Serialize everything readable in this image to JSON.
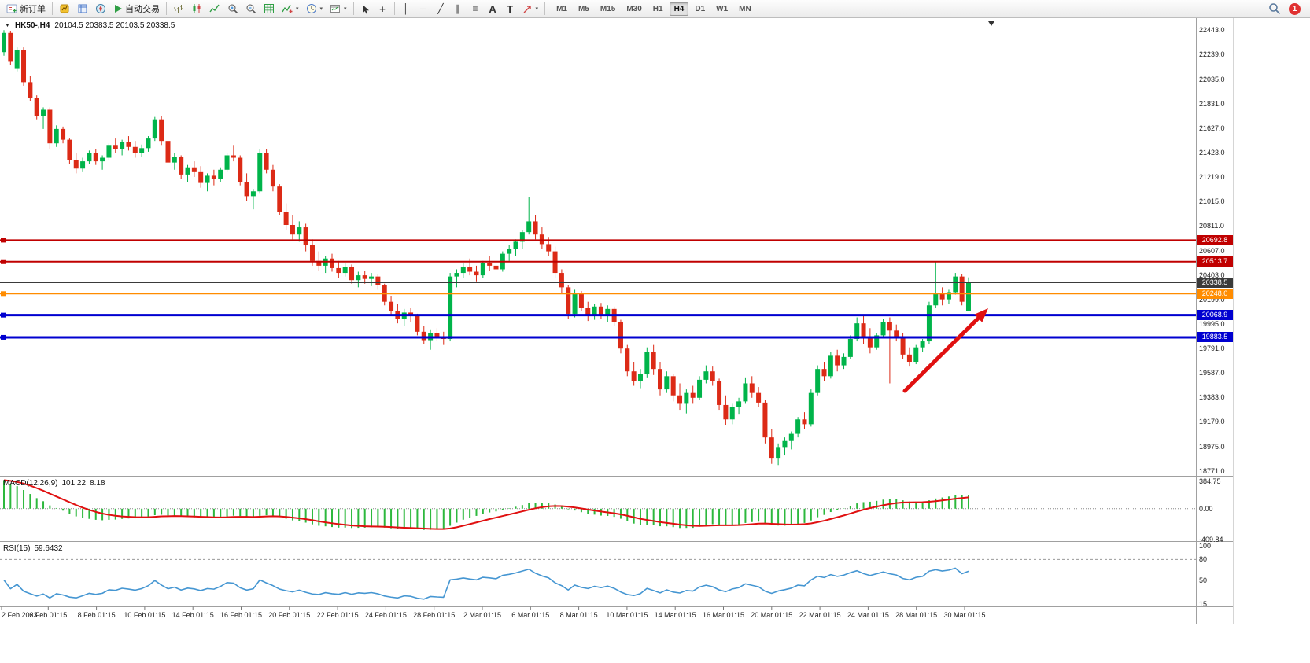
{
  "toolbar": {
    "new_order_label": "新订单",
    "autotrading_label": "自动交易",
    "timeframes": [
      "M1",
      "M5",
      "M15",
      "M30",
      "H1",
      "H4",
      "D1",
      "W1",
      "MN"
    ],
    "active_timeframe": "H4",
    "notification_count": "1"
  },
  "icons": {
    "symbol_dropdown": "▼",
    "scroll_marker": "▼",
    "caret": "▾",
    "crosshair": "+",
    "vertical_line": "│",
    "horizontal_line": "─",
    "trendline": "╱",
    "channel": "∥",
    "fibonacci": "≡",
    "text_tool": "A",
    "label_tool": "T"
  },
  "chart": {
    "title": "HK50-,H4",
    "ohlc": "20104.5 20383.5 20103.5 20338.5",
    "price_axis": [
      "22443.0",
      "22239.0",
      "22035.0",
      "21831.0",
      "21627.0",
      "21423.0",
      "21219.0",
      "21015.0",
      "20811.0",
      "20607.0",
      "20403.0",
      "20199.0",
      "19995.0",
      "19791.0",
      "19587.0",
      "19383.0",
      "19179.0",
      "18975.0",
      "18771.0"
    ],
    "time_axis": [
      "2 Feb 2023",
      "6 Feb 01:15",
      "8 Feb 01:15",
      "10 Feb 01:15",
      "14 Feb 01:15",
      "16 Feb 01:15",
      "20 Feb 01:15",
      "22 Feb 01:15",
      "24 Feb 01:15",
      "28 Feb 01:15",
      "2 Mar 01:15",
      "6 Mar 01:15",
      "8 Mar 01:15",
      "10 Mar 01:15",
      "14 Mar 01:15",
      "16 Mar 01:15",
      "20 Mar 01:15",
      "22 Mar 01:15",
      "24 Mar 01:15",
      "28 Mar 01:15",
      "30 Mar 01:15"
    ],
    "hlines": [
      {
        "price": 20692.8,
        "label": "20692.8",
        "color": "#c00000",
        "type": "resistance"
      },
      {
        "price": 20513.7,
        "label": "20513.7",
        "color": "#c00000",
        "type": "resistance"
      },
      {
        "price": 20338.5,
        "label": "20338.5",
        "color": "#3a3a3a",
        "type": "current-price"
      },
      {
        "price": 20248.0,
        "label": "20248.0",
        "color": "#ff8c00",
        "type": "level"
      },
      {
        "price": 20068.9,
        "label": "20068.9",
        "color": "#0000d0",
        "type": "support"
      },
      {
        "price": 19883.5,
        "label": "19883.5",
        "color": "#0000d0",
        "type": "support"
      }
    ],
    "colors": {
      "up": "#00b44a",
      "down": "#dc2a16",
      "arrow": "#e01010"
    }
  },
  "chart_data": {
    "type": "candlestick",
    "symbol": "HK50-",
    "timeframe": "H4",
    "ohlc_current": {
      "open": 20104.5,
      "high": 20383.5,
      "low": 20103.5,
      "close": 20338.5
    },
    "ylim": [
      18730,
      22530
    ],
    "bars": 148,
    "candles": [
      [
        22260,
        22443,
        22230,
        22420
      ],
      [
        22420,
        22435,
        22150,
        22180
      ],
      [
        22120,
        22300,
        22100,
        22280
      ],
      [
        22280,
        22300,
        21980,
        22010
      ],
      [
        22010,
        22060,
        21850,
        21880
      ],
      [
        21880,
        21900,
        21700,
        21730
      ],
      [
        21730,
        21800,
        21620,
        21780
      ],
      [
        21780,
        21800,
        21450,
        21500
      ],
      [
        21500,
        21650,
        21470,
        21620
      ],
      [
        21620,
        21640,
        21500,
        21530
      ],
      [
        21530,
        21540,
        21330,
        21360
      ],
      [
        21360,
        21420,
        21250,
        21290
      ],
      [
        21290,
        21380,
        21260,
        21350
      ],
      [
        21350,
        21440,
        21330,
        21420
      ],
      [
        21420,
        21450,
        21320,
        21350
      ],
      [
        21350,
        21400,
        21280,
        21380
      ],
      [
        21380,
        21500,
        21360,
        21480
      ],
      [
        21480,
        21540,
        21420,
        21450
      ],
      [
        21450,
        21530,
        21400,
        21510
      ],
      [
        21510,
        21560,
        21440,
        21470
      ],
      [
        21470,
        21520,
        21380,
        21420
      ],
      [
        21420,
        21490,
        21390,
        21460
      ],
      [
        21460,
        21560,
        21430,
        21540
      ],
      [
        21540,
        21720,
        21520,
        21700
      ],
      [
        21700,
        21730,
        21480,
        21520
      ],
      [
        21520,
        21560,
        21300,
        21340
      ],
      [
        21340,
        21420,
        21280,
        21390
      ],
      [
        21390,
        21400,
        21200,
        21240
      ],
      [
        21240,
        21320,
        21180,
        21300
      ],
      [
        21300,
        21350,
        21220,
        21260
      ],
      [
        21260,
        21310,
        21130,
        21170
      ],
      [
        21170,
        21250,
        21100,
        21230
      ],
      [
        21230,
        21280,
        21150,
        21200
      ],
      [
        21200,
        21300,
        21180,
        21280
      ],
      [
        21280,
        21420,
        21260,
        21400
      ],
      [
        21400,
        21480,
        21350,
        21380
      ],
      [
        21380,
        21400,
        21150,
        21180
      ],
      [
        21180,
        21250,
        21020,
        21060
      ],
      [
        21060,
        21120,
        20950,
        21100
      ],
      [
        21100,
        21450,
        21080,
        21420
      ],
      [
        21420,
        21450,
        21250,
        21280
      ],
      [
        21280,
        21320,
        21100,
        21140
      ],
      [
        21140,
        21160,
        20900,
        20930
      ],
      [
        20930,
        21000,
        20780,
        20820
      ],
      [
        20820,
        20900,
        20700,
        20740
      ],
      [
        20740,
        20850,
        20680,
        20800
      ],
      [
        20800,
        20830,
        20600,
        20650
      ],
      [
        20650,
        20700,
        20480,
        20520
      ],
      [
        20520,
        20600,
        20440,
        20480
      ],
      [
        20480,
        20560,
        20420,
        20540
      ],
      [
        20540,
        20580,
        20430,
        20460
      ],
      [
        20460,
        20520,
        20380,
        20420
      ],
      [
        20420,
        20500,
        20390,
        20470
      ],
      [
        20470,
        20490,
        20330,
        20360
      ],
      [
        20360,
        20430,
        20300,
        20400
      ],
      [
        20400,
        20440,
        20330,
        20370
      ],
      [
        20370,
        20420,
        20310,
        20390
      ],
      [
        20390,
        20410,
        20280,
        20320
      ],
      [
        20320,
        20330,
        20150,
        20180
      ],
      [
        20180,
        20230,
        20060,
        20100
      ],
      [
        20100,
        20160,
        20000,
        20040
      ],
      [
        20040,
        20120,
        19980,
        20090
      ],
      [
        20090,
        20130,
        20010,
        20060
      ],
      [
        20060,
        20080,
        19900,
        19930
      ],
      [
        19930,
        19980,
        19830,
        19860
      ],
      [
        19860,
        19950,
        19780,
        19920
      ],
      [
        19920,
        19960,
        19850,
        19890
      ],
      [
        19890,
        19930,
        19820,
        19870
      ],
      [
        19870,
        20420,
        19850,
        20390
      ],
      [
        20390,
        20450,
        20300,
        20420
      ],
      [
        20420,
        20500,
        20380,
        20470
      ],
      [
        20470,
        20540,
        20400,
        20430
      ],
      [
        20430,
        20480,
        20350,
        20400
      ],
      [
        20400,
        20520,
        20380,
        20500
      ],
      [
        20500,
        20560,
        20440,
        20480
      ],
      [
        20480,
        20530,
        20400,
        20450
      ],
      [
        20450,
        20600,
        20430,
        20580
      ],
      [
        20580,
        20650,
        20520,
        20620
      ],
      [
        20620,
        20700,
        20560,
        20680
      ],
      [
        20680,
        20780,
        20620,
        20760
      ],
      [
        20760,
        21050,
        20740,
        20850
      ],
      [
        20850,
        20900,
        20700,
        20740
      ],
      [
        20740,
        20800,
        20620,
        20660
      ],
      [
        20660,
        20720,
        20560,
        20600
      ],
      [
        20600,
        20640,
        20380,
        20420
      ],
      [
        20420,
        20450,
        20250,
        20300
      ],
      [
        20300,
        20320,
        20040,
        20080
      ],
      [
        20080,
        20280,
        20050,
        20250
      ],
      [
        20250,
        20270,
        20100,
        20130
      ],
      [
        20130,
        20180,
        20020,
        20060
      ],
      [
        20060,
        20160,
        20030,
        20140
      ],
      [
        20140,
        20170,
        20040,
        20070
      ],
      [
        20070,
        20150,
        20010,
        20120
      ],
      [
        20120,
        20140,
        19980,
        20010
      ],
      [
        20010,
        20030,
        19750,
        19790
      ],
      [
        19790,
        19820,
        19560,
        19600
      ],
      [
        19600,
        19680,
        19480,
        19520
      ],
      [
        19520,
        19620,
        19460,
        19580
      ],
      [
        19580,
        19800,
        19550,
        19760
      ],
      [
        19760,
        19820,
        19570,
        19620
      ],
      [
        19620,
        19680,
        19400,
        19450
      ],
      [
        19450,
        19600,
        19420,
        19560
      ],
      [
        19560,
        19580,
        19350,
        19400
      ],
      [
        19400,
        19500,
        19280,
        19330
      ],
      [
        19330,
        19450,
        19250,
        19420
      ],
      [
        19420,
        19480,
        19330,
        19380
      ],
      [
        19380,
        19560,
        19360,
        19530
      ],
      [
        19530,
        19650,
        19500,
        19600
      ],
      [
        19600,
        19640,
        19480,
        19520
      ],
      [
        19520,
        19540,
        19280,
        19320
      ],
      [
        19320,
        19400,
        19150,
        19200
      ],
      [
        19200,
        19330,
        19160,
        19300
      ],
      [
        19300,
        19380,
        19240,
        19350
      ],
      [
        19350,
        19550,
        19330,
        19500
      ],
      [
        19500,
        19560,
        19380,
        19420
      ],
      [
        19420,
        19470,
        19300,
        19340
      ],
      [
        19340,
        19360,
        19000,
        19050
      ],
      [
        19050,
        19120,
        18830,
        18880
      ],
      [
        18880,
        19000,
        18820,
        18970
      ],
      [
        18970,
        19050,
        18900,
        19020
      ],
      [
        19020,
        19100,
        18950,
        19080
      ],
      [
        19080,
        19220,
        19050,
        19200
      ],
      [
        19200,
        19260,
        19120,
        19160
      ],
      [
        19160,
        19450,
        19140,
        19420
      ],
      [
        19420,
        19650,
        19400,
        19620
      ],
      [
        19620,
        19680,
        19520,
        19560
      ],
      [
        19560,
        19760,
        19540,
        19730
      ],
      [
        19730,
        19780,
        19600,
        19650
      ],
      [
        19650,
        19750,
        19620,
        19720
      ],
      [
        19720,
        19900,
        19700,
        19870
      ],
      [
        19870,
        20050,
        19850,
        20000
      ],
      [
        20000,
        20060,
        19830,
        19880
      ],
      [
        19880,
        19960,
        19750,
        19800
      ],
      [
        19800,
        19920,
        19780,
        19900
      ],
      [
        19900,
        20040,
        19880,
        20010
      ],
      [
        20010,
        20050,
        19500,
        19940
      ],
      [
        19940,
        19990,
        19850,
        19890
      ],
      [
        19890,
        19920,
        19700,
        19740
      ],
      [
        19740,
        19800,
        19640,
        19680
      ],
      [
        19680,
        19820,
        19660,
        19800
      ],
      [
        19800,
        19870,
        19760,
        19850
      ],
      [
        19850,
        20180,
        19830,
        20150
      ],
      [
        20150,
        20513,
        20130,
        20250
      ],
      [
        20250,
        20300,
        20150,
        20200
      ],
      [
        20200,
        20280,
        20160,
        20260
      ],
      [
        20260,
        20420,
        20240,
        20390
      ],
      [
        20390,
        20410,
        20150,
        20180
      ],
      [
        20104.5,
        20383.5,
        20103.5,
        20338.5
      ]
    ]
  },
  "macd": {
    "label": "MACD(12,26,9)",
    "value_main": "101.22",
    "value_signal": "8.18",
    "scale": [
      "384.75",
      "0.00",
      "-409.84"
    ],
    "params": {
      "fast": 12,
      "slow": 26,
      "signal": 9
    },
    "range": [
      -410,
      385
    ]
  },
  "rsi": {
    "label": "RSI(15)",
    "value": "59.6432",
    "scale": [
      "100",
      "80",
      "50",
      "15"
    ],
    "period": 15,
    "levels": [
      80,
      50
    ],
    "range": [
      15,
      100
    ]
  }
}
